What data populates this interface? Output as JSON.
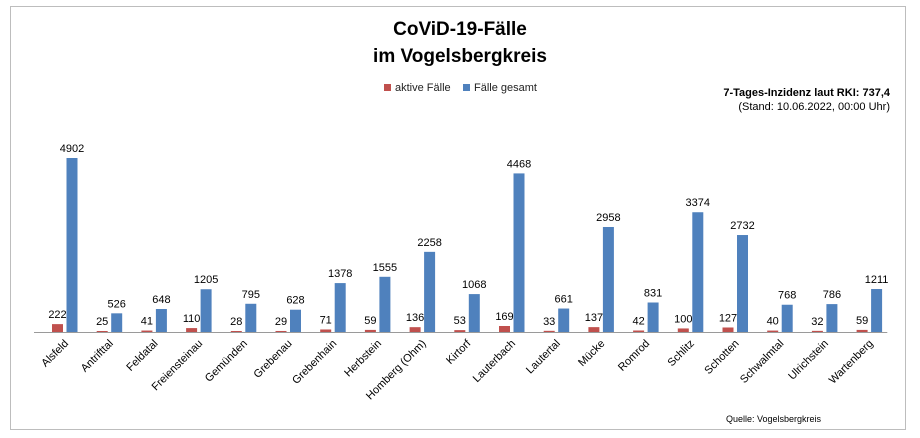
{
  "title_line1": "CoViD-19-Fälle",
  "title_line2": "im Vogelsbergkreis",
  "incidence": "7-Tages-Inzidenz laut RKI: 737,4",
  "stand": "(Stand: 10.06.2022, 00:00 Uhr)",
  "source": "Quelle: Vogelsbergkreis",
  "chart_data": {
    "type": "bar",
    "categories": [
      "Alsfeld",
      "Antrifttal",
      "Feldatal",
      "Freiensteinau",
      "Gemünden",
      "Grebenau",
      "Grebenhain",
      "Herbstein",
      "Homberg (Ohm)",
      "Kirtorf",
      "Lauterbach",
      "Lautertal",
      "Mücke",
      "Romrod",
      "Schlitz",
      "Schotten",
      "Schwalmtal",
      "Ulrichstein",
      "Wartenberg"
    ],
    "series": [
      {
        "name": "aktive Fälle",
        "color": "#c0504d",
        "values": [
          222,
          25,
          41,
          110,
          28,
          29,
          71,
          59,
          136,
          53,
          169,
          33,
          137,
          42,
          100,
          127,
          40,
          32,
          59
        ]
      },
      {
        "name": "Fälle gesamt",
        "color": "#4f81bd",
        "values": [
          4902,
          526,
          648,
          1205,
          795,
          628,
          1378,
          1555,
          2258,
          1068,
          4468,
          661,
          2958,
          831,
          3374,
          2732,
          768,
          786,
          1211
        ]
      }
    ],
    "legend_position": "top-center",
    "grid": false,
    "ylim": [
      0,
      4902
    ]
  }
}
